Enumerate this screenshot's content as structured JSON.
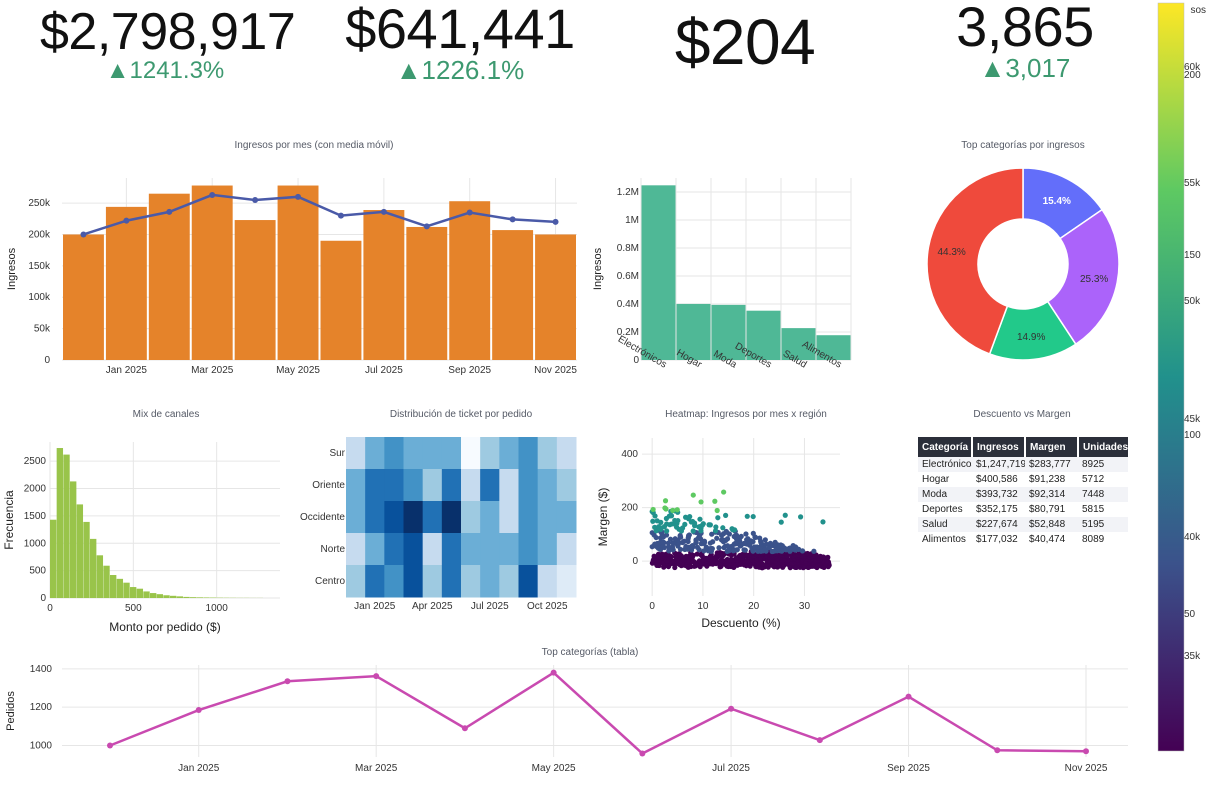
{
  "kpis": [
    {
      "value": "$2,798,917",
      "delta": "▲1241.3%"
    },
    {
      "value": "$641,441",
      "delta": "▲1226.1%"
    },
    {
      "value": "$204",
      "delta": ""
    },
    {
      "value": "3,865",
      "delta": "▲3,017"
    }
  ],
  "titles": {
    "revenue": "Ingresos por mes (con media móvil)",
    "donut": "Top categorías por ingresos",
    "hist": "Mix de canales",
    "heatmap": "Distribución de ticket por pedido",
    "scatter": "Heatmap: Ingresos por mes x región",
    "table": "Descuento vs Margen",
    "orders": "Top categorías (tabla)"
  },
  "colors": {
    "bar": "#e5832a",
    "line": "#4a5aa8",
    "catbar": "#4fb896",
    "hist": "#99c44a",
    "orders": "#c94ab0",
    "positive": "#3d9970"
  },
  "chart_data": [
    {
      "id": "revenue",
      "type": "bar",
      "title": "Ingresos por mes (con media móvil)",
      "ylabel": "Ingresos",
      "categories": [
        "Dec 2024",
        "Jan 2025",
        "Feb 2025",
        "Mar 2025",
        "Apr 2025",
        "May 2025",
        "Jun 2025",
        "Jul 2025",
        "Aug 2025",
        "Sep 2025",
        "Oct 2025",
        "Nov 2025"
      ],
      "xtick_labels": [
        "Jan 2025",
        "Mar 2025",
        "May 2025",
        "Jul 2025",
        "Sep 2025",
        "Nov 2025"
      ],
      "yticks": [
        "0",
        "50k",
        "100k",
        "150k",
        "200k",
        "250k"
      ],
      "ylim": [
        0,
        290000
      ],
      "series": [
        {
          "name": "Ingresos",
          "type": "bar",
          "values": [
            200000,
            244000,
            265000,
            278000,
            223000,
            278000,
            190000,
            239000,
            212000,
            253000,
            207000,
            200000
          ]
        },
        {
          "name": "Media móvil",
          "type": "line",
          "values": [
            200000,
            222000,
            236000,
            263000,
            255000,
            260000,
            230000,
            236000,
            213000,
            235000,
            224000,
            220000
          ]
        }
      ]
    },
    {
      "id": "categories",
      "type": "bar",
      "title": "",
      "ylabel": "Ingresos",
      "categories": [
        "Electrónicos",
        "Hogar",
        "Moda",
        "Deportes",
        "Salud",
        "Alimentos"
      ],
      "values": [
        1247719,
        400586,
        393732,
        352175,
        227674,
        177032
      ],
      "yticks": [
        "0",
        "0.2M",
        "0.4M",
        "0.6M",
        "0.8M",
        "1M",
        "1.2M"
      ],
      "ylim": [
        0,
        1300000
      ]
    },
    {
      "id": "donut",
      "type": "pie",
      "title": "Top categorías por ingresos",
      "labels": [
        "44.3%",
        "15.4%",
        "25.3%",
        "14.9%"
      ],
      "values": [
        44.3,
        15.4,
        25.3,
        14.9
      ],
      "colors": [
        "#ef4a3c",
        "#636efa",
        "#ab63fa",
        "#22c98a"
      ]
    },
    {
      "id": "hist",
      "type": "bar",
      "title": "Mix de canales",
      "xlabel": "Monto por pedido ($)",
      "ylabel": "Frecuencia",
      "bin_width": 40,
      "values": [
        1430,
        2740,
        2620,
        2130,
        1710,
        1390,
        1080,
        780,
        590,
        420,
        350,
        280,
        200,
        170,
        120,
        90,
        70,
        50,
        40,
        30,
        20,
        15,
        12,
        10,
        8,
        6,
        5,
        4,
        3,
        3,
        2,
        2
      ],
      "xticks": [
        "0",
        "500",
        "1000"
      ],
      "yticks": [
        "0",
        "500",
        "1000",
        "1500",
        "2000",
        "2500"
      ],
      "xlim": [
        0,
        1380
      ],
      "ylim": [
        0,
        2850
      ]
    },
    {
      "id": "heatmap",
      "type": "heatmap",
      "title": "Distribución de ticket por pedido",
      "rows": [
        "Sur",
        "Oriente",
        "Occidente",
        "Norte",
        "Centro"
      ],
      "xtick_labels": [
        "Jan 2025",
        "Apr 2025",
        "Jul 2025",
        "Oct 2025"
      ],
      "values": [
        [
          0.3,
          0.45,
          0.6,
          0.5,
          0.45,
          0.55,
          0.05,
          0.35,
          0.45,
          0.6,
          0.4,
          0.3
        ],
        [
          0.45,
          0.75,
          0.7,
          0.6,
          0.35,
          0.75,
          0.3,
          0.8,
          0.25,
          0.65,
          0.5,
          0.4
        ],
        [
          0.55,
          0.7,
          0.85,
          0.95,
          0.8,
          1.0,
          0.4,
          0.55,
          0.25,
          0.6,
          0.55,
          0.5
        ],
        [
          0.25,
          0.5,
          0.7,
          0.9,
          0.2,
          0.8,
          0.45,
          0.55,
          0.55,
          0.6,
          0.45,
          0.3
        ],
        [
          0.4,
          0.75,
          0.6,
          0.85,
          0.35,
          0.7,
          0.4,
          0.55,
          0.4,
          0.85,
          0.2,
          0.15
        ]
      ]
    },
    {
      "id": "scatter",
      "type": "scatter",
      "title": "Heatmap: Ingresos por mes x región",
      "xlabel": "Descuento (%)",
      "ylabel": "Margen ($)",
      "xticks": [
        "0",
        "10",
        "20",
        "30"
      ],
      "yticks": [
        "0",
        "200",
        "400"
      ],
      "xlim": [
        -2,
        37
      ],
      "ylim": [
        -130,
        460
      ],
      "colorscale": [
        "#440154",
        "#3b528b",
        "#21918c",
        "#5ec962",
        "#fde725"
      ]
    },
    {
      "id": "orders",
      "type": "line",
      "title": "Top categorías (tabla)",
      "ylabel": "Pedidos",
      "categories": [
        "Dec 2024",
        "Jan 2025",
        "Feb 2025",
        "Mar 2025",
        "Apr 2025",
        "May 2025",
        "Jun 2025",
        "Jul 2025",
        "Aug 2025",
        "Sep 2025",
        "Oct 2025",
        "Nov 2025"
      ],
      "xtick_labels": [
        "Jan 2025",
        "Mar 2025",
        "May 2025",
        "Jul 2025",
        "Sep 2025",
        "Nov 2025"
      ],
      "values": [
        1000,
        1185,
        1335,
        1362,
        1090,
        1380,
        958,
        1192,
        1028,
        1255,
        975,
        970
      ],
      "yticks": [
        "1000",
        "1200",
        "1400"
      ],
      "ylim": [
        940,
        1420
      ]
    }
  ],
  "table": {
    "headers": [
      "Categoría",
      "Ingresos",
      "Margen",
      "Unidades"
    ],
    "rows": [
      [
        "Electrónicos",
        "$1,247,719",
        "$283,777",
        "8925"
      ],
      [
        "Hogar",
        "$400,586",
        "$91,238",
        "5712"
      ],
      [
        "Moda",
        "$393,732",
        "$92,314",
        "7448"
      ],
      [
        "Deportes",
        "$352,175",
        "$80,791",
        "5815"
      ],
      [
        "Salud",
        "$227,674",
        "$52,848",
        "5195"
      ],
      [
        "Alimentos",
        "$177,032",
        "$40,474",
        "8089"
      ]
    ]
  },
  "colorbar": {
    "title": "sos",
    "labels": [
      "60k",
      "200",
      "55k",
      "150",
      "50k",
      "45k",
      "100",
      "40k",
      "50",
      "35k"
    ]
  }
}
